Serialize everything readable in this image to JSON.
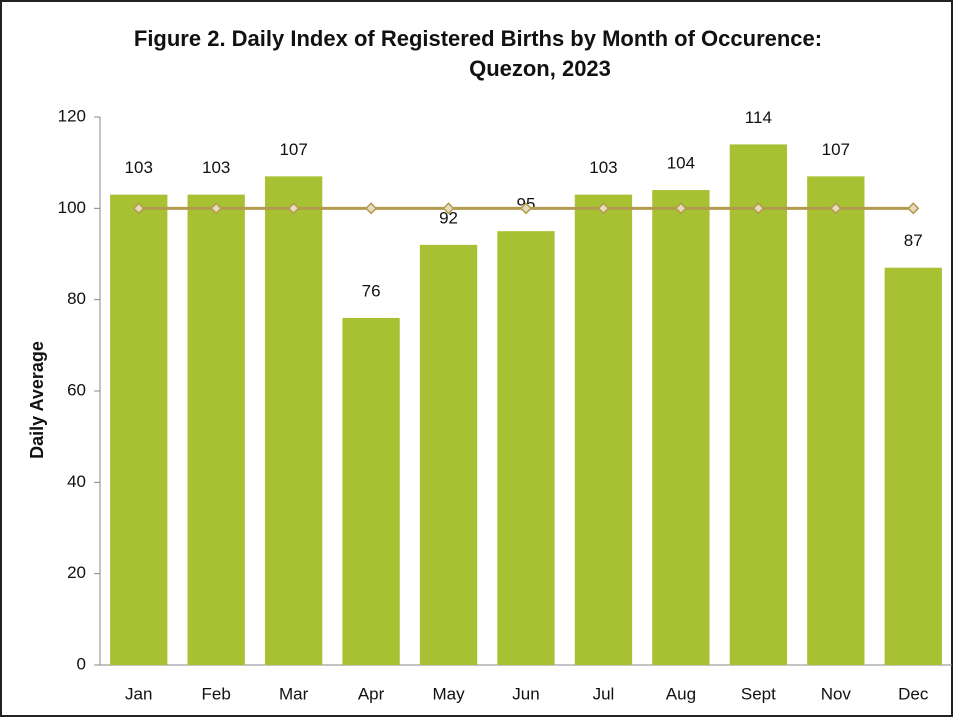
{
  "chart_data": {
    "type": "bar",
    "title": [
      "Figure 2. Daily Index of Registered Births by Month of Occurence:",
      "Quezon, 2023"
    ],
    "ylabel": "Daily Average",
    "categories": [
      "Jan",
      "Feb",
      "Mar",
      "Apr",
      "May",
      "Jun",
      "Jul",
      "Aug",
      "Sept",
      "Nov",
      "Dec"
    ],
    "values": [
      103,
      103,
      107,
      76,
      92,
      95,
      103,
      104,
      114,
      107,
      87
    ],
    "color": "#a8c132",
    "line_values": [
      100,
      100,
      100,
      100,
      100,
      100,
      100,
      100,
      100,
      100,
      100
    ],
    "line_color": "#b49a4e",
    "ylim": [
      0,
      120
    ],
    "yticks": [
      0,
      20,
      40,
      60,
      80,
      100,
      120
    ],
    "grid": false
  }
}
